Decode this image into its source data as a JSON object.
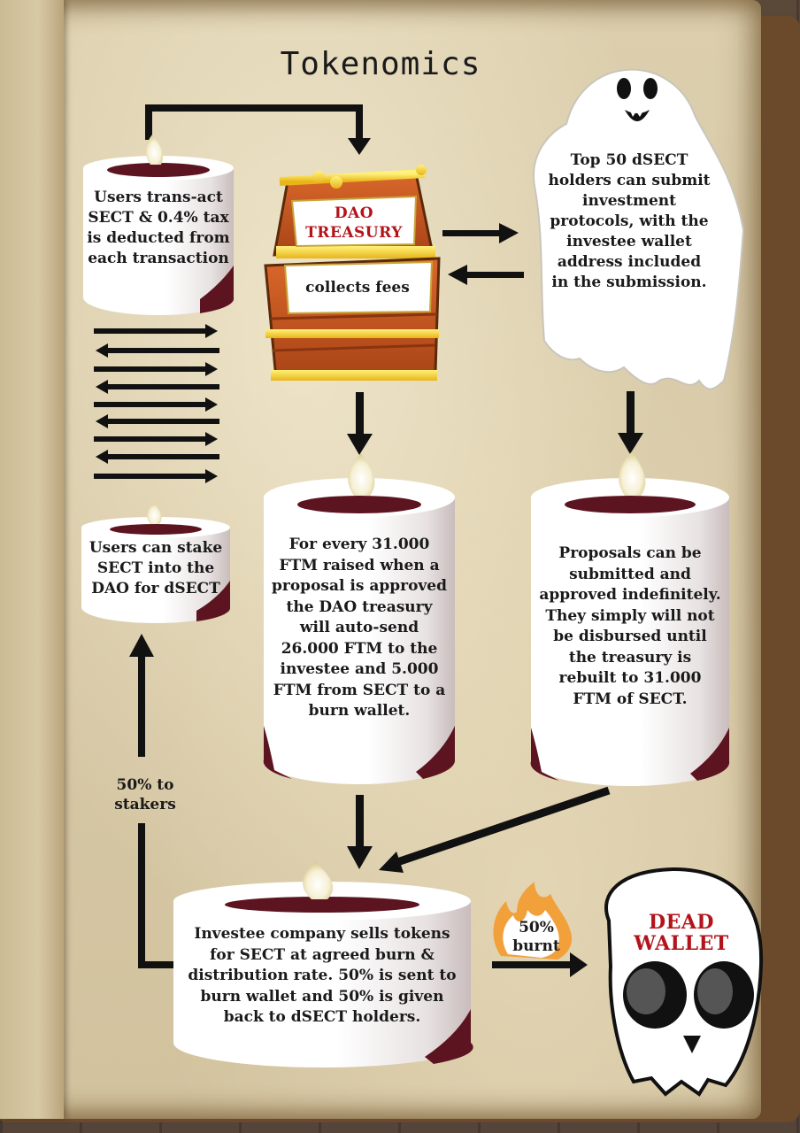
{
  "title": "Tokenomics",
  "nodes": {
    "users_transact": "Users trans-act SECT & 0.4% tax is deducted from each transaction",
    "treasury_title": "DAO TREASURY",
    "treasury_sub": "collects fees",
    "top50": "Top 50 dSECT holders can submit investment protocols, with the investee wallet address included in the submission.",
    "users_stake": "Users can stake SECT into the DAO for dSECT",
    "every_31000": "For every 31.000 FTM raised when a proposal is approved the DAO treasury will auto-send 26.000 FTM to the investee and 5.000 FTM from SECT to a burn wallet.",
    "proposals": "Proposals can be submitted and approved indefinitely. They simply will not be disbursed until the treasury is rebuilt to 31.000 FTM of SECT.",
    "investee": "Investee company sells tokens for SECT at agreed burn & distribution rate. 50% is sent to burn wallet and 50% is given back to dSECT holders.",
    "dead_wallet": "DEAD WALLET"
  },
  "edges": {
    "stakers_label": "50% to stakers",
    "burnt_label": "50% burnt"
  },
  "colors": {
    "wine": "#5c1520",
    "red": "#b3141b",
    "ink": "#111111"
  }
}
